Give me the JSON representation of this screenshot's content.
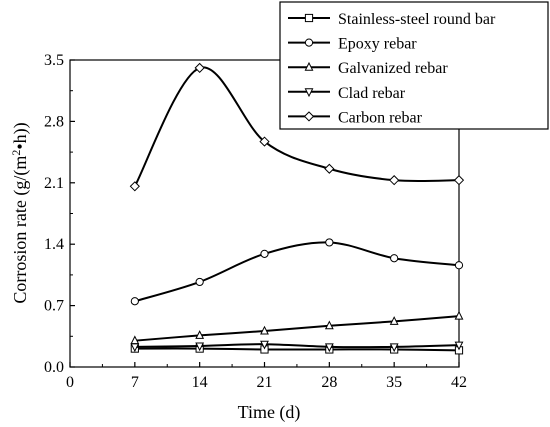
{
  "chart_data": {
    "type": "line",
    "xlabel": "Time (d)",
    "ylabel_parts": {
      "prefix": "Corrosion rate (g/(m",
      "sup": "2",
      "mid": "•h))"
    },
    "x": [
      7,
      14,
      21,
      28,
      35,
      42
    ],
    "xlim": [
      0,
      42
    ],
    "ylim": [
      0,
      3.5
    ],
    "xticks": [
      "0",
      "7",
      "14",
      "21",
      "28",
      "35",
      "42"
    ],
    "yticks": [
      "0.0",
      "0.7",
      "1.4",
      "2.1",
      "2.8",
      "3.5"
    ],
    "grid": false,
    "legend_position": "top-right",
    "series": [
      {
        "name": "Stainless-steel round bar",
        "marker": "square",
        "values": [
          0.21,
          0.21,
          0.2,
          0.2,
          0.2,
          0.19
        ]
      },
      {
        "name": "Epoxy rebar",
        "marker": "circle",
        "values": [
          0.75,
          0.97,
          1.29,
          1.42,
          1.24,
          1.16
        ]
      },
      {
        "name": "Galvanized rebar",
        "marker": "triangle-up",
        "values": [
          0.3,
          0.36,
          0.41,
          0.47,
          0.52,
          0.58
        ]
      },
      {
        "name": "Clad rebar",
        "marker": "triangle-down",
        "values": [
          0.23,
          0.24,
          0.26,
          0.23,
          0.23,
          0.25
        ]
      },
      {
        "name": "Carbon rebar",
        "marker": "diamond",
        "values": [
          2.06,
          3.41,
          2.57,
          2.26,
          2.13,
          2.13
        ]
      }
    ]
  }
}
